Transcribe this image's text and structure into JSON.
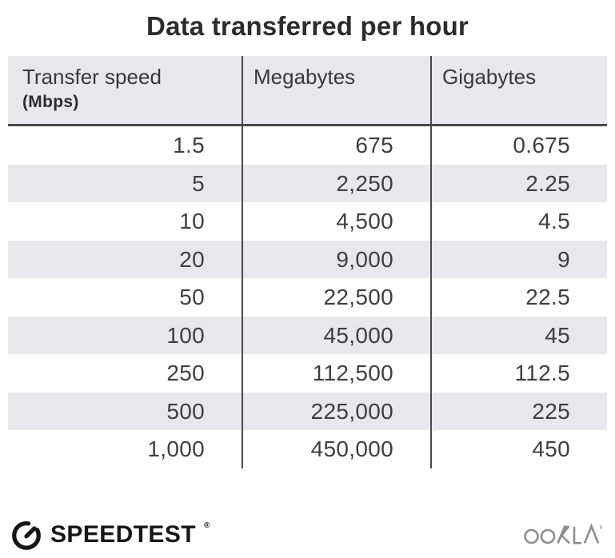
{
  "title": "Data transferred per hour",
  "table": {
    "columns": [
      {
        "label": "Transfer speed",
        "sublabel": "(Mbps)"
      },
      {
        "label": "Megabytes",
        "sublabel": ""
      },
      {
        "label": "Gigabytes",
        "sublabel": ""
      }
    ],
    "rows": [
      [
        "1.5",
        "675",
        "0.675"
      ],
      [
        "5",
        "2,250",
        "2.25"
      ],
      [
        "10",
        "4,500",
        "4.5"
      ],
      [
        "20",
        "9,000",
        "9"
      ],
      [
        "50",
        "22,500",
        "22.5"
      ],
      [
        "100",
        "45,000",
        "45"
      ],
      [
        "250",
        "112,500",
        "112.5"
      ],
      [
        "500",
        "225,000",
        "225"
      ],
      [
        "1,000",
        "450,000",
        "450"
      ]
    ]
  },
  "footer": {
    "speedtest_label": "SPEEDTEST",
    "speedtest_trademark": "®",
    "ookla_label": "OOKLA"
  },
  "colors": {
    "stripe": "#e8e8ec",
    "divider": "#48484a",
    "title_text": "#2c2c2e",
    "cell_text": "#3e3e42",
    "speedtest_black": "#161616",
    "ookla_gray": "#8e8e90"
  },
  "chart_data": {
    "type": "table",
    "title": "Data transferred per hour",
    "columns": [
      "Transfer speed (Mbps)",
      "Megabytes",
      "Gigabytes"
    ],
    "rows": [
      [
        1.5,
        675,
        0.675
      ],
      [
        5,
        2250,
        2.25
      ],
      [
        10,
        4500,
        4.5
      ],
      [
        20,
        9000,
        9
      ],
      [
        50,
        22500,
        22.5
      ],
      [
        100,
        45000,
        45
      ],
      [
        250,
        112500,
        112.5
      ],
      [
        500,
        225000,
        225
      ],
      [
        1000,
        450000,
        450
      ]
    ],
    "layout": {
      "zebra_stripes": true,
      "numeric_alignment": "right",
      "header_background": "#e8e8ec"
    }
  }
}
